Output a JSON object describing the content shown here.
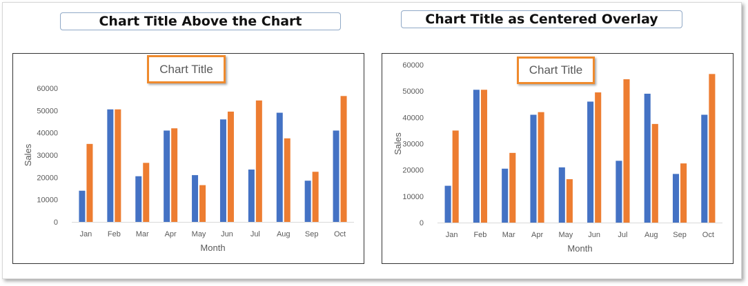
{
  "headings": {
    "left": "Chart Title Above the Chart",
    "right": "Chart Title as Centered Overlay"
  },
  "colors": {
    "series1": "#4472c4",
    "series2": "#ed7d31",
    "callout_border": "#ef8a2d",
    "heading_border": "#8fa8c6"
  },
  "chart_data": [
    {
      "type": "bar",
      "title": "Chart Title",
      "title_position": "above",
      "xlabel": "Month",
      "ylabel": "Sales",
      "categories": [
        "Jan",
        "Feb",
        "Mar",
        "Apr",
        "May",
        "Jun",
        "Jul",
        "Aug",
        "Sep",
        "Oct"
      ],
      "series": [
        {
          "values": [
            14000,
            50500,
            20500,
            41000,
            21000,
            46000,
            23500,
            49000,
            18500,
            41000
          ]
        },
        {
          "values": [
            35000,
            50500,
            26500,
            42000,
            16500,
            49500,
            54500,
            37500,
            22500,
            56500
          ]
        }
      ],
      "ylim": [
        0,
        60000
      ],
      "yticks": [
        "0",
        "10000",
        "20000",
        "30000",
        "40000",
        "50000",
        "60000"
      ],
      "grid": false,
      "legend": "none"
    },
    {
      "type": "bar",
      "title": "Chart Title",
      "title_position": "centered overlay",
      "xlabel": "Month",
      "ylabel": "Sales",
      "categories": [
        "Jan",
        "Feb",
        "Mar",
        "Apr",
        "May",
        "Jun",
        "Jul",
        "Aug",
        "Sep",
        "Oct"
      ],
      "series": [
        {
          "values": [
            14000,
            50500,
            20500,
            41000,
            21000,
            46000,
            23500,
            49000,
            18500,
            41000
          ]
        },
        {
          "values": [
            35000,
            50500,
            26500,
            42000,
            16500,
            49500,
            54500,
            37500,
            22500,
            56500
          ]
        }
      ],
      "ylim": [
        0,
        60000
      ],
      "yticks": [
        "0",
        "10000",
        "20000",
        "30000",
        "40000",
        "50000",
        "60000"
      ],
      "grid": false,
      "legend": "none"
    }
  ]
}
